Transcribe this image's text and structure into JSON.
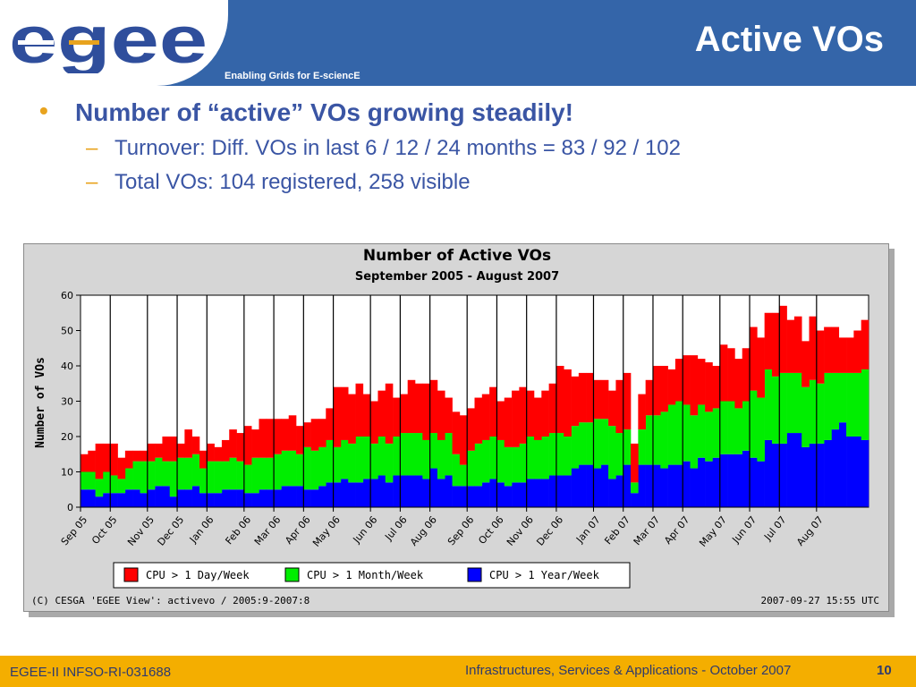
{
  "header": {
    "title": "Active VOs",
    "tagline": "Enabling Grids for E-sciencE",
    "logo_text": "egee",
    "colors": {
      "bar": "#3465a9",
      "logo": "#2f4e9c",
      "accent": "#e8a31e"
    }
  },
  "bullets": {
    "main": "Number of “active” VOs growing steadily!",
    "sub": [
      "Turnover:  Diff. VOs in last 6 / 12 / 24 months = 83 / 92 / 102",
      "Total VOs: 104 registered, 258 visible"
    ]
  },
  "chart_data": {
    "type": "bar",
    "stacked": true,
    "title": "Number of Active VOs",
    "subtitle": "September 2005 - August 2007",
    "ylabel": "Number of VOs",
    "ylim": [
      0,
      60
    ],
    "yticks": [
      0,
      10,
      20,
      30,
      40,
      50,
      60
    ],
    "grid": true,
    "legend_position": "bottom",
    "x_tick_labels": [
      "Sep 05",
      "Oct 05",
      "Nov 05",
      "Dec 05",
      "Jan 06",
      "Feb 06",
      "Mar 06",
      "Apr 06",
      "May 06",
      "Jun 06",
      "Jul 06",
      "Aug 06",
      "Sep 06",
      "Oct 06",
      "Nov 06",
      "Dec 06",
      "Jan 07",
      "Feb 07",
      "Mar 07",
      "Apr 07",
      "May 07",
      "Jun 07",
      "Jul 07",
      "Aug 07"
    ],
    "weeks_per_month": [
      4,
      5,
      4,
      4,
      5,
      4,
      4,
      4,
      5,
      4,
      4,
      5,
      4,
      4,
      4,
      5,
      4,
      4,
      4,
      5,
      4,
      4,
      5,
      4
    ],
    "series": [
      {
        "name": "CPU > 1 Year/Week",
        "color": "#0000ff",
        "values": [
          5,
          5,
          3,
          4,
          4,
          4,
          5,
          5,
          4,
          5,
          6,
          6,
          3,
          5,
          5,
          6,
          4,
          4,
          4,
          5,
          5,
          5,
          4,
          4,
          5,
          5,
          5,
          6,
          6,
          6,
          5,
          5,
          6,
          7,
          7,
          8,
          7,
          7,
          8,
          8,
          9,
          7,
          9,
          9,
          9,
          9,
          8,
          11,
          8,
          9,
          6,
          6,
          6,
          6,
          7,
          8,
          7,
          6,
          7,
          7,
          8,
          8,
          8,
          9,
          9,
          9,
          11,
          12,
          12,
          11,
          12,
          8,
          9,
          12,
          4,
          12,
          12,
          12,
          11,
          12,
          12,
          13,
          11,
          14,
          13,
          14,
          15,
          15,
          15,
          16,
          14,
          13,
          19,
          18,
          18,
          21,
          21,
          17,
          18,
          18,
          19,
          22,
          24,
          20,
          20,
          19
        ]
      },
      {
        "name": "CPU > 1 Month/Week",
        "color": "#00ee00",
        "values": [
          5,
          5,
          5,
          6,
          5,
          4,
          6,
          8,
          9,
          8,
          8,
          7,
          10,
          9,
          9,
          9,
          7,
          9,
          9,
          8,
          9,
          8,
          8,
          10,
          9,
          9,
          10,
          10,
          10,
          9,
          12,
          11,
          11,
          12,
          10,
          11,
          11,
          13,
          12,
          10,
          11,
          11,
          11,
          12,
          12,
          12,
          11,
          10,
          11,
          12,
          9,
          6,
          10,
          12,
          12,
          12,
          12,
          11,
          10,
          11,
          12,
          11,
          12,
          12,
          12,
          11,
          12,
          12,
          12,
          14,
          13,
          15,
          12,
          10,
          3,
          10,
          14,
          14,
          16,
          17,
          18,
          16,
          15,
          15,
          14,
          14,
          15,
          15,
          13,
          14,
          19,
          18,
          20,
          19,
          20,
          17,
          17,
          17,
          18,
          17,
          19,
          16,
          14,
          18,
          18,
          20
        ]
      },
      {
        "name": "CPU > 1 Day/Week",
        "color": "#ff0000",
        "values": [
          5,
          6,
          10,
          8,
          9,
          6,
          5,
          3,
          3,
          5,
          4,
          7,
          7,
          4,
          8,
          5,
          5,
          5,
          4,
          6,
          8,
          8,
          11,
          8,
          11,
          11,
          10,
          9,
          10,
          8,
          7,
          9,
          8,
          9,
          17,
          15,
          14,
          15,
          12,
          12,
          13,
          17,
          11,
          11,
          15,
          14,
          16,
          15,
          14,
          10,
          12,
          14,
          12,
          13,
          13,
          14,
          11,
          14,
          16,
          16,
          13,
          12,
          13,
          14,
          19,
          19,
          14,
          14,
          14,
          11,
          11,
          10,
          15,
          16,
          11,
          10,
          10,
          14,
          13,
          10,
          12,
          14,
          17,
          13,
          14,
          12,
          16,
          15,
          14,
          15,
          18,
          17,
          16,
          18,
          19,
          15,
          16,
          13,
          18,
          15,
          13,
          13,
          10,
          10,
          12,
          14
        ]
      }
    ],
    "copyright": "(C) CESGA 'EGEE View': activevo / 2005:9-2007:8",
    "timestamp": "2007-09-27 15:55 UTC"
  },
  "footer": {
    "left": "EGEE-II INFSO-RI-031688",
    "right": "Infrastructures, Services & Applications - October 2007",
    "page": "10"
  }
}
